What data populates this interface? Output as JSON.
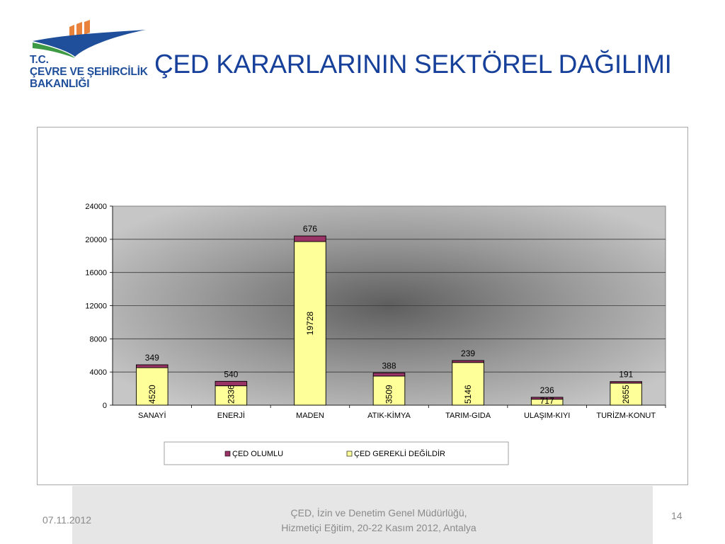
{
  "header": {
    "logo_lines": [
      "T.C.",
      "ÇEVRE VE ŞEHİRCİLİK",
      "BAKANLIĞI"
    ],
    "title": "ÇED KARARLARININ SEKTÖREL DAĞILIMI"
  },
  "colors": {
    "title": "#17409a",
    "logo_blue": "#1f4e9a",
    "logo_orange": "#e9823a",
    "logo_green": "#3e9a44",
    "series_olumlu": "#993366",
    "series_gerekli_degil": "#ffff99",
    "plot_bg": "#c0c0c0"
  },
  "chart_data": {
    "type": "bar",
    "stacked": true,
    "categories": [
      "SANAYİ",
      "ENERJİ",
      "MADEN",
      "ATIK-KİMYA",
      "TARIM-GIDA",
      "ULAŞIM-KIYI",
      "TURİZM-KONUT"
    ],
    "series": [
      {
        "name": "ÇED GEREKLİ DEĞİLDİR",
        "values": [
          4520,
          2336,
          19728,
          3509,
          5146,
          717,
          2655
        ],
        "color": "#ffff99"
      },
      {
        "name": "ÇED OLUMLU",
        "values": [
          349,
          540,
          676,
          388,
          239,
          236,
          191
        ],
        "color": "#993366"
      }
    ],
    "yticks": [
      0,
      4000,
      8000,
      12000,
      16000,
      20000,
      24000
    ],
    "ylim": [
      0,
      24000
    ],
    "title": "",
    "xlabel": "",
    "ylabel": "",
    "grid": true,
    "legend": {
      "position": "bottom",
      "entries": [
        "ÇED OLUMLU",
        "ÇED GEREKLİ DEĞİLDİR"
      ]
    }
  },
  "footer": {
    "date": "07.11.2012",
    "line1": "ÇED, İzin ve Denetim Genel Müdürlüğü,",
    "line2": "Hizmetiçi Eğitim, 20-22 Kasım 2012, Antalya",
    "page_number": "14"
  }
}
